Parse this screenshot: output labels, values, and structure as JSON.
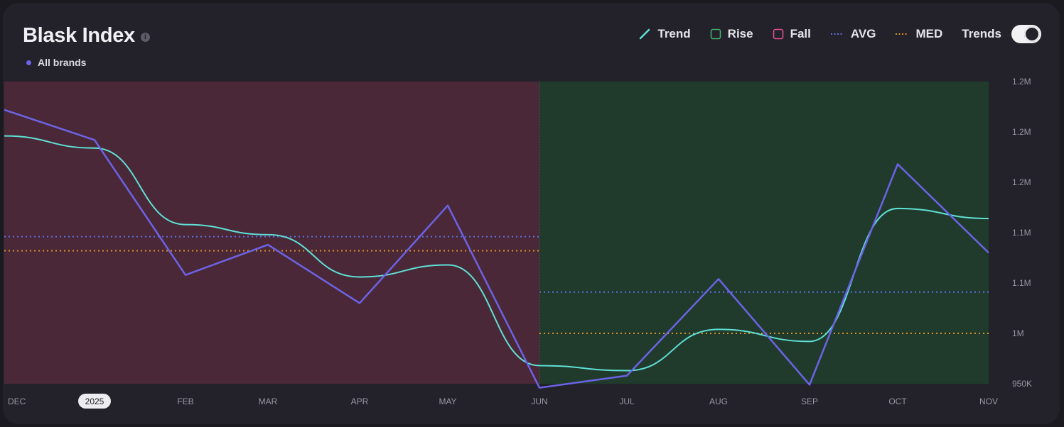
{
  "header": {
    "title": "Blask Index",
    "info_icon": "info-icon",
    "brand_label": "All brands"
  },
  "legend": {
    "trend": "Trend",
    "rise": "Rise",
    "fall": "Fall",
    "avg": "AVG",
    "med": "MED",
    "trends_toggle": "Trends",
    "trends_toggle_on": true
  },
  "colors": {
    "main_series": "#6c63e6",
    "trend": "#5fe0d6",
    "rise_region": "#203b2c",
    "fall_region": "#4a2837",
    "avg_line": "#5a6fe6",
    "med_line": "#d9932a"
  },
  "chart_data": {
    "type": "line",
    "title": "Blask Index",
    "x": [
      "DEC",
      "JAN",
      "FEB",
      "MAR",
      "APR",
      "MAY",
      "JUN",
      "JUL",
      "AUG",
      "SEP",
      "OCT",
      "NOV"
    ],
    "x_tick_labels": [
      "DEC",
      "2025",
      "FEB",
      "MAR",
      "APR",
      "MAY",
      "JUN",
      "JUL",
      "AUG",
      "SEP",
      "OCT",
      "NOV"
    ],
    "highlighted_tick": "2025",
    "series": [
      {
        "name": "All brands",
        "values": [
          1222000,
          1192000,
          1058000,
          1088000,
          1030000,
          1127000,
          946000,
          958000,
          1054000,
          949000,
          1168000,
          1080000
        ]
      }
    ],
    "trend": [
      1196000,
      1184000,
      1108000,
      1098000,
      1056000,
      1068000,
      968000,
      963000,
      1004000,
      992000,
      1124000,
      1114000
    ],
    "regions": [
      {
        "type": "fall",
        "from": "DEC",
        "to": "JUN",
        "avg": 1096000,
        "med": 1082000
      },
      {
        "type": "rise",
        "from": "JUN",
        "to": "NOV",
        "avg": 1041000,
        "med": 1000000
      }
    ],
    "y_ticks": [
      950000,
      1000000,
      1050000,
      1100000,
      1150000,
      1200000,
      1250000
    ],
    "y_tick_labels": [
      "950K",
      "1M",
      "1.1M",
      "1.1M",
      "1.2M",
      "1.2M",
      "1.2M"
    ],
    "ylim": [
      950000,
      1250000
    ],
    "grid": false,
    "legend_position": "top-right"
  }
}
